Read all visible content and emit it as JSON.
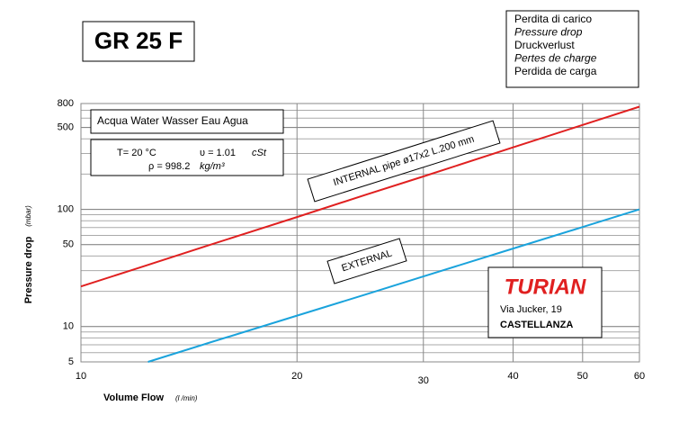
{
  "chart_data": {
    "type": "line",
    "title": "GR 25 F",
    "caption": [
      "Perdita di carico",
      "Pressure drop",
      "Druckverlust",
      "Pertes de charge",
      "Perdida de carga"
    ],
    "fluid": "Acqua  Water  Wasser  Eau  Agua",
    "conditions": {
      "temperature": "T= 20 °C",
      "viscosity": "υ = 1.01",
      "viscosity_unit": "cSt",
      "density": "ρ = 998.2",
      "density_unit": "kg/m³"
    },
    "xlabel": "Volume Flow",
    "xlabel_unit": "(l /min)",
    "ylabel": "Pressure drop",
    "ylabel_unit": "(mbar)",
    "xlog": true,
    "ylog": true,
    "xlim": [
      10,
      60
    ],
    "ylim": [
      5,
      800
    ],
    "xticks": [
      10,
      20,
      30,
      40,
      50,
      60
    ],
    "yticks": [
      5,
      10,
      50,
      100,
      500,
      800
    ],
    "y_minor_grid": [
      6,
      7,
      8,
      9,
      20,
      30,
      40,
      60,
      70,
      80,
      90,
      200,
      300,
      400,
      600,
      700
    ],
    "series": [
      {
        "name": "INTERNAL   pipe ø17x2 L.200 mm",
        "color": "#e02020",
        "x": [
          10,
          12,
          15,
          20,
          25,
          30,
          40,
          50,
          60
        ],
        "values": [
          22,
          31.5,
          49,
          86,
          134,
          191,
          338,
          525,
          752
        ]
      },
      {
        "name": "EXTERNAL",
        "color": "#1aa3dc",
        "x": [
          12.4,
          15,
          20,
          25,
          30,
          40,
          50,
          60
        ],
        "values": [
          5,
          7.2,
          12.4,
          18.9,
          26.8,
          46.3,
          70.7,
          100
        ]
      }
    ],
    "company": {
      "name": "TURIAN",
      "address": "Via Jucker, 19",
      "city": "CASTELLANZA"
    }
  }
}
